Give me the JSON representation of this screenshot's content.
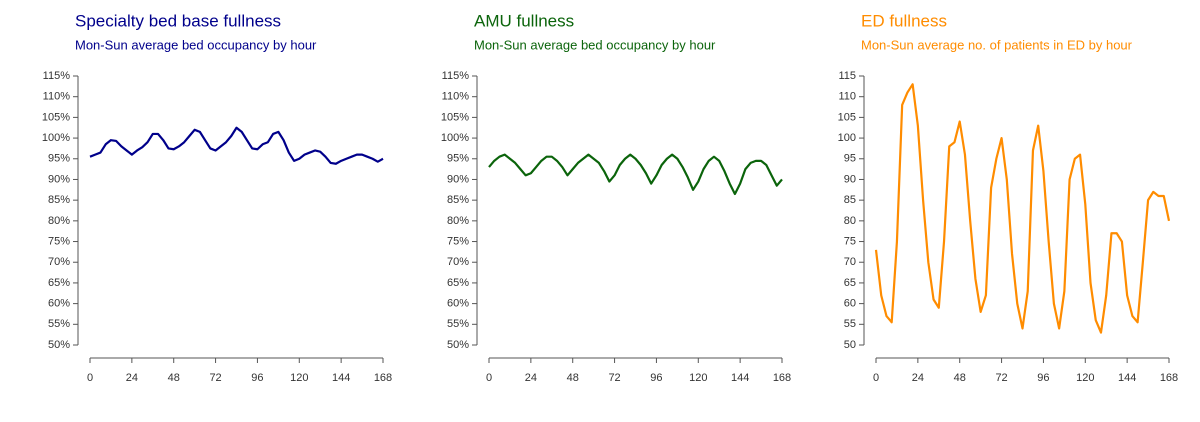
{
  "chart_data": [
    {
      "type": "line",
      "title": "Specialty bed base fullness",
      "subtitle": "Mon-Sun average bed occupancy by hour",
      "color": "#00008b",
      "x": [
        0,
        3,
        6,
        9,
        12,
        15,
        18,
        21,
        24,
        27,
        30,
        33,
        36,
        39,
        42,
        45,
        48,
        51,
        54,
        57,
        60,
        63,
        66,
        69,
        72,
        75,
        78,
        81,
        84,
        87,
        90,
        93,
        96,
        99,
        102,
        105,
        108,
        111,
        114,
        117,
        120,
        123,
        126,
        129,
        132,
        135,
        138,
        141,
        144,
        147,
        150,
        153,
        156,
        159,
        162,
        165,
        168
      ],
      "values": [
        95.5,
        96,
        96.5,
        98.5,
        99.5,
        99.3,
        98,
        97,
        96,
        97,
        97.8,
        99,
        101,
        101,
        99.5,
        97.5,
        97.3,
        98,
        99,
        100.5,
        102,
        101.5,
        99.5,
        97.5,
        97,
        98,
        99,
        100.5,
        102.5,
        101.5,
        99.5,
        97.5,
        97.3,
        98.5,
        99,
        101,
        101.5,
        99.5,
        96.5,
        94.5,
        95,
        96,
        96.5,
        97,
        96.7,
        95.5,
        94,
        93.8,
        94.5,
        95,
        95.5,
        96,
        96,
        95.5,
        95,
        94.3,
        95
      ],
      "xlim": [
        0,
        168
      ],
      "xticks": [
        0,
        24,
        48,
        72,
        96,
        120,
        144,
        168
      ],
      "ylim": [
        50,
        115
      ],
      "yticks": [
        {
          "value": 50,
          "label": "50%"
        },
        {
          "value": 55,
          "label": "55%"
        },
        {
          "value": 60,
          "label": "60%"
        },
        {
          "value": 65,
          "label": "65%"
        },
        {
          "value": 70,
          "label": "70%"
        },
        {
          "value": 75,
          "label": "75%"
        },
        {
          "value": 80,
          "label": "80%"
        },
        {
          "value": 85,
          "label": "85%"
        },
        {
          "value": 90,
          "label": "90%"
        },
        {
          "value": 95,
          "label": "95%"
        },
        {
          "value": 100,
          "label": "100%"
        },
        {
          "value": 105,
          "label": "105%"
        },
        {
          "value": 110,
          "label": "110%"
        },
        {
          "value": 115,
          "label": "115%"
        }
      ]
    },
    {
      "type": "line",
      "title": "AMU fullness",
      "subtitle": "Mon-Sun average bed occupancy by hour",
      "color": "#0b640b",
      "x": [
        0,
        3,
        6,
        9,
        12,
        15,
        18,
        21,
        24,
        27,
        30,
        33,
        36,
        39,
        42,
        45,
        48,
        51,
        54,
        57,
        60,
        63,
        66,
        69,
        72,
        75,
        78,
        81,
        84,
        87,
        90,
        93,
        96,
        99,
        102,
        105,
        108,
        111,
        114,
        117,
        120,
        123,
        126,
        129,
        132,
        135,
        138,
        141,
        144,
        147,
        150,
        153,
        156,
        159,
        162,
        165,
        168
      ],
      "values": [
        93,
        94.5,
        95.5,
        96,
        95,
        94,
        92.5,
        91,
        91.5,
        93,
        94.5,
        95.5,
        95.5,
        94.5,
        93,
        91,
        92.5,
        94,
        95,
        96,
        95,
        94,
        92,
        89.5,
        91,
        93.5,
        95,
        96,
        95,
        93.5,
        91.5,
        89,
        91,
        93.5,
        95,
        96,
        95,
        93,
        90.5,
        87.5,
        89.5,
        92.5,
        94.5,
        95.5,
        94.5,
        92,
        89,
        86.5,
        89,
        92.5,
        94,
        94.5,
        94.5,
        93.5,
        91,
        88.5,
        90
      ],
      "xlim": [
        0,
        168
      ],
      "xticks": [
        0,
        24,
        48,
        72,
        96,
        120,
        144,
        168
      ],
      "ylim": [
        50,
        115
      ],
      "yticks": [
        {
          "value": 50,
          "label": "50%"
        },
        {
          "value": 55,
          "label": "55%"
        },
        {
          "value": 60,
          "label": "60%"
        },
        {
          "value": 65,
          "label": "65%"
        },
        {
          "value": 70,
          "label": "70%"
        },
        {
          "value": 75,
          "label": "75%"
        },
        {
          "value": 80,
          "label": "80%"
        },
        {
          "value": 85,
          "label": "85%"
        },
        {
          "value": 90,
          "label": "90%"
        },
        {
          "value": 95,
          "label": "95%"
        },
        {
          "value": 100,
          "label": "100%"
        },
        {
          "value": 105,
          "label": "105%"
        },
        {
          "value": 110,
          "label": "110%"
        },
        {
          "value": 115,
          "label": "115%"
        }
      ]
    },
    {
      "type": "line",
      "title": "ED fullness",
      "subtitle": "Mon-Sun average no. of patients in ED by hour",
      "color": "#ff8c00",
      "x": [
        0,
        3,
        6,
        9,
        12,
        15,
        18,
        21,
        24,
        27,
        30,
        33,
        36,
        39,
        42,
        45,
        48,
        51,
        54,
        57,
        60,
        63,
        66,
        69,
        72,
        75,
        78,
        81,
        84,
        87,
        90,
        93,
        96,
        99,
        102,
        105,
        108,
        111,
        114,
        117,
        120,
        123,
        126,
        129,
        132,
        135,
        138,
        141,
        144,
        147,
        150,
        153,
        156,
        159,
        162,
        165,
        168
      ],
      "values": [
        73,
        62,
        57,
        55.5,
        75,
        108,
        111,
        113,
        103,
        85,
        70,
        61,
        59,
        75,
        98,
        99,
        104,
        96,
        80,
        66,
        58,
        62,
        88,
        95,
        100,
        90,
        72,
        60,
        54,
        63,
        97,
        103,
        92,
        75,
        60,
        54,
        63,
        90,
        95,
        96,
        84,
        65,
        56,
        53,
        62,
        77,
        77,
        75,
        62,
        57,
        55.5,
        70,
        85,
        87,
        86,
        86,
        80
      ],
      "xlim": [
        0,
        168
      ],
      "xticks": [
        0,
        24,
        48,
        72,
        96,
        120,
        144,
        168
      ],
      "ylim": [
        50,
        115
      ],
      "yticks": [
        50,
        55,
        60,
        65,
        70,
        75,
        80,
        85,
        90,
        95,
        100,
        105,
        110,
        115
      ]
    }
  ]
}
